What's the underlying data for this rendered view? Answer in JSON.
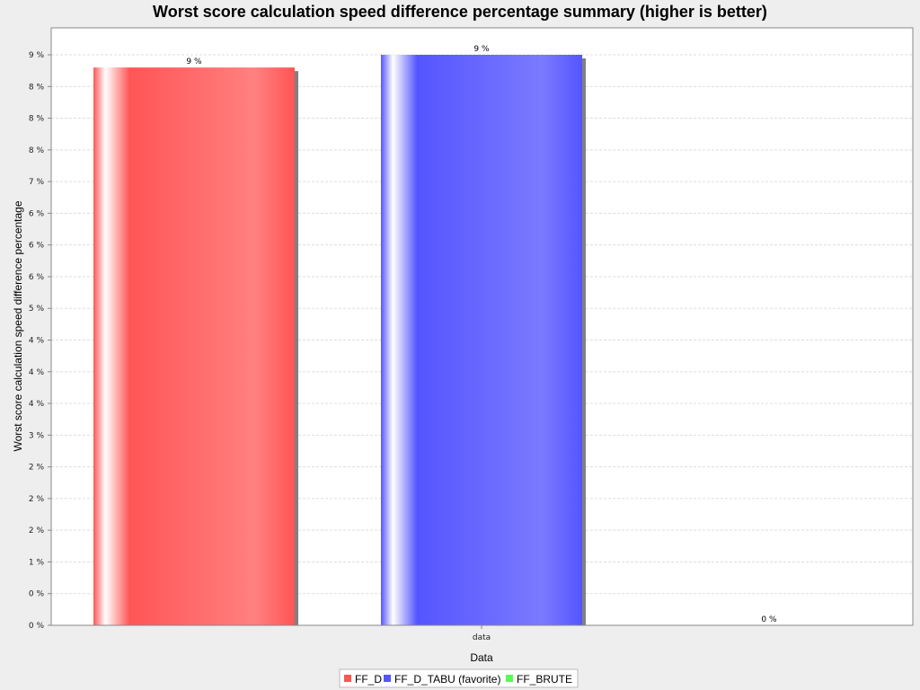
{
  "chart_data": {
    "type": "bar",
    "title": "Worst score calculation speed difference percentage summary (higher is better)",
    "xlabel": "Data",
    "ylabel": "Worst score calculation speed difference percentage",
    "categories": [
      "data"
    ],
    "series": [
      {
        "name": "FF_D",
        "values": [
          8.8
        ],
        "label": "9 %",
        "color": "#ff5555"
      },
      {
        "name": "FF_D_TABU (favorite)",
        "values": [
          9.0
        ],
        "label": "9 %",
        "color": "#5555ff"
      },
      {
        "name": "FF_BRUTE",
        "values": [
          0
        ],
        "label": "0 %",
        "color": "#55ff55"
      }
    ],
    "ylim": [
      0,
      9.0
    ],
    "yticks": [
      {
        "value": 0.0,
        "label": "0 %"
      },
      {
        "value": 0.5,
        "label": "0 %"
      },
      {
        "value": 1.0,
        "label": "1 %"
      },
      {
        "value": 1.5,
        "label": "2 %"
      },
      {
        "value": 2.0,
        "label": "2 %"
      },
      {
        "value": 2.5,
        "label": "2 %"
      },
      {
        "value": 3.0,
        "label": "3 %"
      },
      {
        "value": 3.5,
        "label": "4 %"
      },
      {
        "value": 4.0,
        "label": "4 %"
      },
      {
        "value": 4.5,
        "label": "4 %"
      },
      {
        "value": 5.0,
        "label": "5 %"
      },
      {
        "value": 5.5,
        "label": "6 %"
      },
      {
        "value": 6.0,
        "label": "6 %"
      },
      {
        "value": 6.5,
        "label": "6 %"
      },
      {
        "value": 7.0,
        "label": "7 %"
      },
      {
        "value": 7.5,
        "label": "8 %"
      },
      {
        "value": 8.0,
        "label": "8 %"
      },
      {
        "value": 8.5,
        "label": "8 %"
      },
      {
        "value": 9.0,
        "label": "9 %"
      }
    ],
    "grid": true,
    "legend_position": "bottom"
  }
}
